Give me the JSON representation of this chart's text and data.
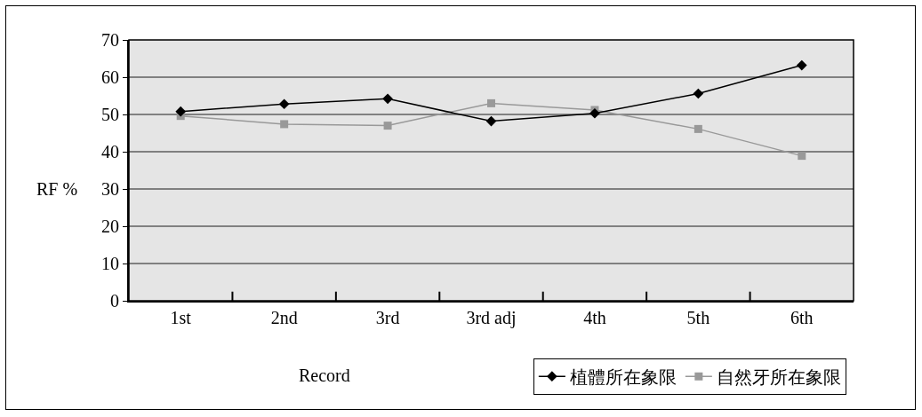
{
  "chart_data": {
    "type": "line",
    "xlabel": "Record",
    "ylabel": "RF %",
    "categories": [
      "1st",
      "2nd",
      "3rd",
      "3rd adj",
      "4th",
      "5th",
      "6th"
    ],
    "series": [
      {
        "name": "植體所在象限",
        "color": "#000000",
        "marker": "diamond",
        "values": [
          50.8,
          52.8,
          54.2,
          48.2,
          50.3,
          55.6,
          63.2
        ]
      },
      {
        "name": "自然牙所在象限",
        "color": "#999999",
        "marker": "square",
        "values": [
          49.6,
          47.4,
          47.0,
          53.0,
          51.2,
          46.1,
          38.9
        ]
      }
    ],
    "ylim": [
      0,
      70
    ],
    "yticks": [
      0,
      10,
      20,
      30,
      40,
      50,
      60,
      70
    ],
    "grid": "y",
    "legend": "bottom right",
    "line_style": "solid"
  }
}
